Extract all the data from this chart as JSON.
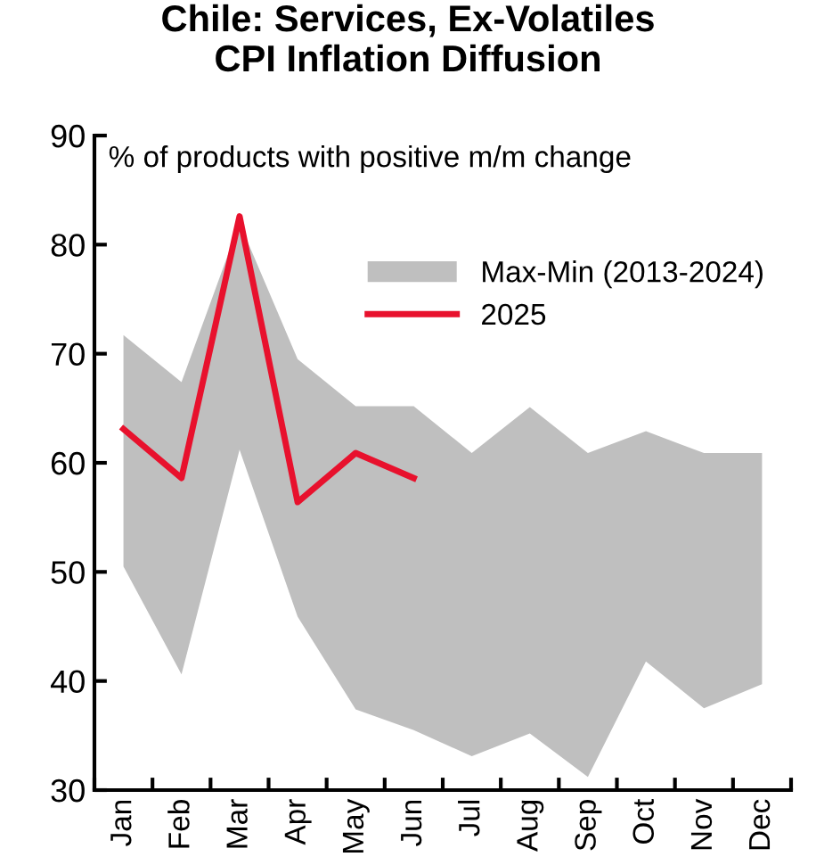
{
  "chart_data": {
    "type": "line",
    "title": "Chile: Services, Ex-Volatiles\nCPI Inflation Diffusion",
    "ylabel": "% of products with positive m/m change",
    "categories": [
      "Jan",
      "Feb",
      "Mar",
      "Apr",
      "May",
      "Jun",
      "Jul",
      "Aug",
      "Sep",
      "Oct",
      "Nov",
      "Dec"
    ],
    "series": [
      {
        "name": "Max-Min (2013-2024)",
        "type": "area",
        "color": "#bfbfbf",
        "lower": [
          50.5,
          40.6,
          61.2,
          45.9,
          37.4,
          35.5,
          33.1,
          35.2,
          31.2,
          41.8,
          37.5,
          39.7
        ],
        "upper": [
          71.7,
          67.4,
          82,
          69.5,
          65.2,
          65.2,
          60.9,
          65.1,
          60.9,
          62.9,
          60.9,
          60.9
        ],
        "values": [
          null,
          null,
          null,
          null,
          null,
          null,
          null,
          null,
          null,
          null,
          null,
          null
        ]
      },
      {
        "name": "2025",
        "type": "line",
        "color": "#e8112d",
        "values": [
          63.1,
          58.6,
          82.6,
          56.4,
          60.9,
          58.6,
          null,
          null,
          null,
          null,
          null,
          null
        ]
      }
    ],
    "ylim": [
      30,
      90
    ],
    "yticks": [
      30,
      40,
      50,
      60,
      70,
      80,
      90
    ],
    "grid": false,
    "legend": "top right",
    "marker": "none",
    "line_style": "solid"
  }
}
